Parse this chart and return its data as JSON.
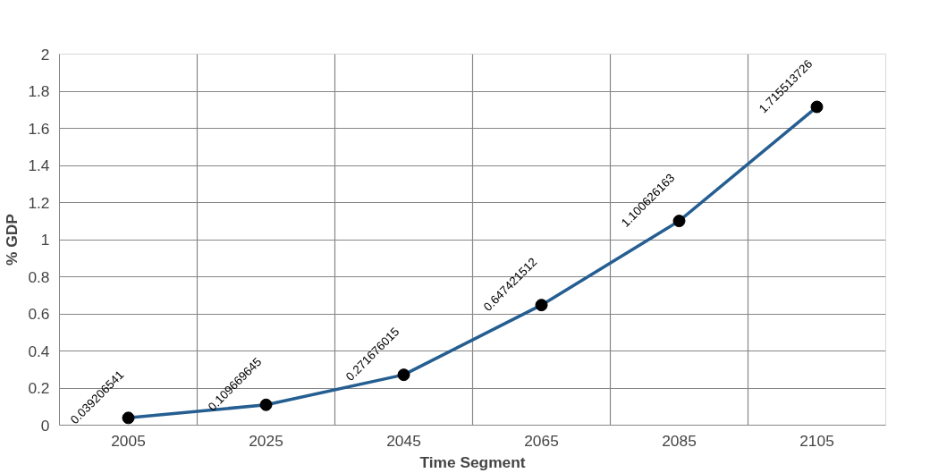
{
  "chart_data": {
    "type": "line",
    "xlabel": "Time Segment",
    "ylabel": "% GDP",
    "categories": [
      "2005",
      "2025",
      "2045",
      "2065",
      "2085",
      "2105"
    ],
    "series": [
      {
        "color": "#255e91",
        "values": [
          0.039206541,
          0.109669645,
          0.271676015,
          0.647421512,
          1.100626163,
          1.715513726
        ]
      }
    ],
    "ylim": [
      0,
      2
    ],
    "yticks": [
      0,
      0.2,
      0.4,
      0.6,
      0.8,
      1,
      1.2,
      1.4,
      1.6,
      1.8,
      2
    ],
    "grid": true,
    "marker": "circle",
    "data_labels": true,
    "line_style": "solid"
  }
}
